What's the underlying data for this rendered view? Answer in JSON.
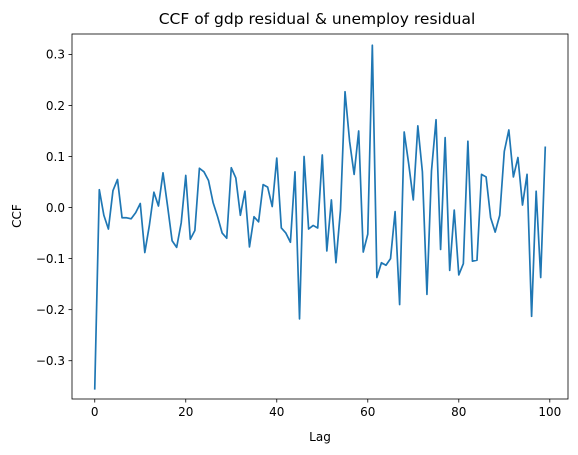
{
  "chart_data": {
    "type": "line",
    "title": "CCF of gdp residual & unemploy residual",
    "xlabel": "Lag",
    "ylabel": "CCF",
    "xlim": [
      -5,
      104
    ],
    "ylim": [
      -0.375,
      0.34
    ],
    "xticks": [
      0,
      20,
      40,
      60,
      80,
      100
    ],
    "yticks": [
      -0.3,
      -0.2,
      -0.1,
      0.0,
      0.1,
      0.2,
      0.3
    ],
    "ytick_labels": [
      "−0.3",
      "−0.2",
      "−0.1",
      "0.0",
      "0.1",
      "0.2",
      "0.3"
    ],
    "grid": false,
    "line_color": "#1f77b4",
    "series": [
      {
        "x": [
          0,
          1,
          2,
          3,
          4,
          5,
          6,
          7,
          8,
          9,
          10,
          11,
          12,
          13,
          14,
          15,
          16,
          17,
          18,
          19,
          20,
          21,
          22,
          23,
          24,
          25,
          26,
          27,
          28,
          29,
          30,
          31,
          32,
          33,
          34,
          35,
          36,
          37,
          38,
          39,
          40,
          41,
          42,
          43,
          44,
          45,
          46,
          47,
          48,
          49,
          50,
          51,
          52,
          53,
          54,
          55,
          56,
          57,
          58,
          59,
          60,
          61,
          62,
          63,
          64,
          65,
          66,
          67,
          68,
          69,
          70,
          71,
          72,
          73,
          74,
          75,
          76,
          77,
          78,
          79,
          80,
          81,
          82,
          83,
          84,
          85,
          86,
          87,
          88,
          89,
          90,
          91,
          92,
          93,
          94,
          95,
          96,
          97,
          98,
          99
        ],
        "values": [
          -0.355,
          0.035,
          -0.015,
          -0.042,
          0.033,
          0.055,
          -0.02,
          -0.02,
          -0.022,
          -0.01,
          0.008,
          -0.088,
          -0.035,
          0.03,
          0.003,
          0.068,
          0.003,
          -0.065,
          -0.078,
          -0.03,
          0.063,
          -0.062,
          -0.045,
          0.077,
          0.07,
          0.053,
          0.01,
          -0.018,
          -0.05,
          -0.06,
          0.078,
          0.058,
          -0.015,
          0.032,
          -0.077,
          -0.018,
          -0.028,
          0.045,
          0.04,
          0.002,
          0.097,
          -0.04,
          -0.05,
          -0.068,
          0.07,
          -0.218,
          0.1,
          -0.042,
          -0.035,
          -0.04,
          0.103,
          -0.085,
          0.015,
          -0.108,
          -0.005,
          0.227,
          0.13,
          0.065,
          0.15,
          -0.087,
          -0.052,
          0.318,
          -0.137,
          -0.108,
          -0.113,
          -0.1,
          -0.008,
          -0.19,
          0.148,
          0.085,
          0.015,
          0.16,
          0.07,
          -0.17,
          0.072,
          0.172,
          -0.082,
          0.137,
          -0.123,
          -0.005,
          -0.132,
          -0.11,
          0.13,
          -0.105,
          -0.103,
          0.065,
          0.06,
          -0.02,
          -0.048,
          -0.015,
          0.11,
          0.152,
          0.06,
          0.098,
          0.005,
          0.065,
          -0.213,
          0.032,
          -0.137,
          0.118
        ]
      }
    ]
  }
}
